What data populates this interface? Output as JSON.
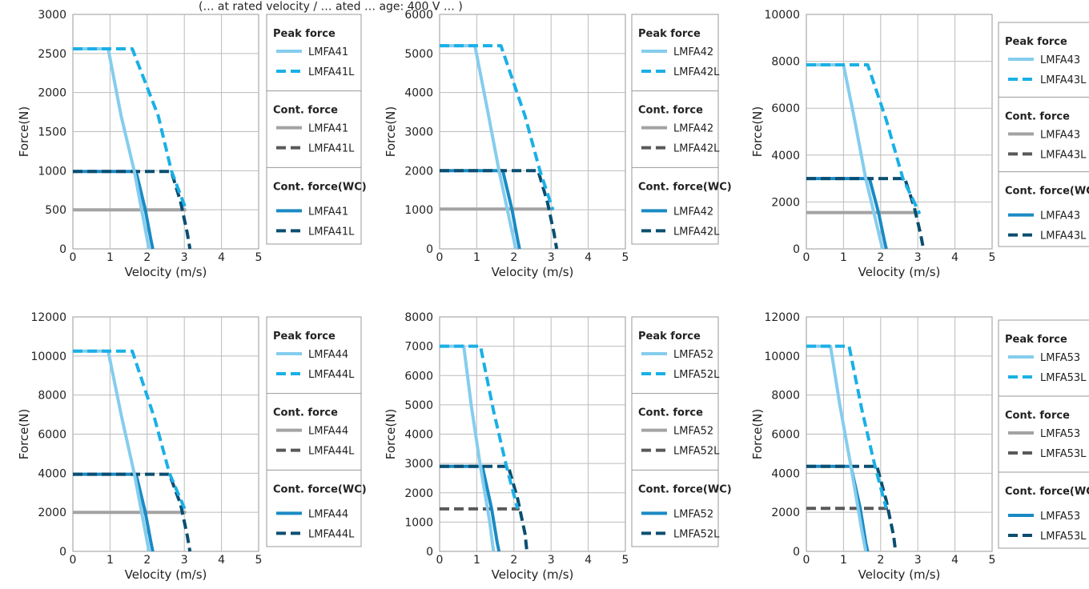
{
  "page_header": "(… at rated velocity / … ated … age: 400 V … )",
  "legend_groups": [
    {
      "key": "peak",
      "title": "Peak force"
    },
    {
      "key": "cont",
      "title": "Cont. force"
    },
    {
      "key": "wc",
      "title": "Cont. force(WC)"
    }
  ],
  "colors": {
    "peak_std": "#85cdee",
    "peak_L": "#1ab0e6",
    "cont_std": "#a3a3a3",
    "cont_L": "#595959",
    "wc_std": "#1a8ac4",
    "wc_L": "#0b4e70"
  },
  "chart_data": [
    {
      "type": "line",
      "xlabel": "Velocity (m/s)",
      "ylabel": "Force(N)",
      "xlim": [
        0,
        5
      ],
      "ylim": [
        0,
        3000
      ],
      "xticks": [
        "0",
        "1",
        "2",
        "3",
        "4",
        "5"
      ],
      "yticks": [
        "0",
        "500",
        "1000",
        "1500",
        "2000",
        "2500",
        "3000"
      ],
      "grid": true,
      "legend": "right",
      "series": [
        {
          "name": "LMFA41",
          "group": "peak",
          "style": "std",
          "points": [
            [
              0,
              2560
            ],
            [
              0.95,
              2560
            ],
            [
              1.3,
              1700
            ],
            [
              1.65,
              1000
            ],
            [
              2.05,
              0
            ]
          ]
        },
        {
          "name": "LMFA41L",
          "group": "peak",
          "style": "L",
          "points": [
            [
              0,
              2560
            ],
            [
              1.6,
              2560
            ],
            [
              2.3,
              1700
            ],
            [
              2.65,
              1000
            ],
            [
              3.05,
              500
            ]
          ]
        },
        {
          "name": "LMFA41",
          "group": "cont",
          "style": "std",
          "points": [
            [
              0,
              500
            ],
            [
              3.05,
              500
            ]
          ]
        },
        {
          "name": "LMFA41L",
          "group": "cont",
          "style": "L",
          "points": []
        },
        {
          "name": "LMFA41",
          "group": "wc",
          "style": "std",
          "points": [
            [
              0,
              990
            ],
            [
              1.7,
              990
            ],
            [
              1.95,
              500
            ],
            [
              2.1,
              120
            ],
            [
              2.15,
              0
            ]
          ]
        },
        {
          "name": "LMFA41L",
          "group": "wc",
          "style": "L",
          "points": [
            [
              0,
              990
            ],
            [
              2.65,
              990
            ],
            [
              2.9,
              600
            ],
            [
              3.08,
              200
            ],
            [
              3.15,
              0
            ]
          ]
        }
      ]
    },
    {
      "type": "line",
      "xlabel": "Velocity (m/s)",
      "ylabel": "Force(N)",
      "xlim": [
        0,
        5
      ],
      "ylim": [
        0,
        6000
      ],
      "xticks": [
        "0",
        "1",
        "2",
        "3",
        "4",
        "5"
      ],
      "yticks": [
        "0",
        "1000",
        "2000",
        "3000",
        "4000",
        "5000",
        "6000"
      ],
      "grid": true,
      "legend": "right",
      "series": [
        {
          "name": "LMFA42",
          "group": "peak",
          "style": "std",
          "points": [
            [
              0,
              5200
            ],
            [
              0.95,
              5200
            ],
            [
              1.3,
              3500
            ],
            [
              1.6,
              2000
            ],
            [
              2.05,
              0
            ]
          ]
        },
        {
          "name": "LMFA42L",
          "group": "peak",
          "style": "L",
          "points": [
            [
              0,
              5200
            ],
            [
              1.65,
              5200
            ],
            [
              2.3,
              3400
            ],
            [
              2.7,
              2000
            ],
            [
              3.05,
              1000
            ]
          ]
        },
        {
          "name": "LMFA42",
          "group": "cont",
          "style": "std",
          "points": [
            [
              0,
              1020
            ],
            [
              3.05,
              1020
            ]
          ]
        },
        {
          "name": "LMFA42L",
          "group": "cont",
          "style": "L",
          "points": []
        },
        {
          "name": "LMFA42",
          "group": "wc",
          "style": "std",
          "points": [
            [
              0,
              2000
            ],
            [
              1.7,
              2000
            ],
            [
              1.95,
              1000
            ],
            [
              2.1,
              240
            ],
            [
              2.15,
              0
            ]
          ]
        },
        {
          "name": "LMFA42L",
          "group": "wc",
          "style": "L",
          "points": [
            [
              0,
              2000
            ],
            [
              2.65,
              2000
            ],
            [
              2.9,
              1200
            ],
            [
              3.08,
              400
            ],
            [
              3.15,
              0
            ]
          ]
        }
      ]
    },
    {
      "type": "line",
      "xlabel": "Velocity (m/s)",
      "ylabel": "Force(N)",
      "xlim": [
        0,
        5
      ],
      "ylim": [
        0,
        10000
      ],
      "xticks": [
        "0",
        "1",
        "2",
        "3",
        "4",
        "5"
      ],
      "yticks": [
        "0",
        "2000",
        "4000",
        "6000",
        "8000",
        "10000"
      ],
      "grid": true,
      "legend": "right",
      "series": [
        {
          "name": "LMFA43",
          "group": "peak",
          "style": "std",
          "points": [
            [
              0,
              7850
            ],
            [
              1.0,
              7850
            ],
            [
              1.3,
              5500
            ],
            [
              1.6,
              3000
            ],
            [
              2.05,
              0
            ]
          ]
        },
        {
          "name": "LMFA43L",
          "group": "peak",
          "style": "L",
          "points": [
            [
              0,
              7850
            ],
            [
              1.65,
              7850
            ],
            [
              2.15,
              5500
            ],
            [
              2.6,
              3000
            ],
            [
              3.05,
              1500
            ]
          ]
        },
        {
          "name": "LMFA43",
          "group": "cont",
          "style": "std",
          "points": [
            [
              0,
              1550
            ],
            [
              3.05,
              1550
            ]
          ]
        },
        {
          "name": "LMFA43L",
          "group": "cont",
          "style": "L",
          "points": []
        },
        {
          "name": "LMFA43",
          "group": "wc",
          "style": "std",
          "points": [
            [
              0,
              3000
            ],
            [
              1.7,
              3000
            ],
            [
              1.95,
              1500
            ],
            [
              2.1,
              360
            ],
            [
              2.15,
              0
            ]
          ]
        },
        {
          "name": "LMFA43L",
          "group": "wc",
          "style": "L",
          "points": [
            [
              0,
              3000
            ],
            [
              2.65,
              3000
            ],
            [
              2.9,
              1800
            ],
            [
              3.08,
              600
            ],
            [
              3.15,
              0
            ]
          ]
        }
      ]
    },
    {
      "type": "line",
      "xlabel": "Velocity (m/s)",
      "ylabel": "Force(N)",
      "xlim": [
        0,
        5
      ],
      "ylim": [
        0,
        12000
      ],
      "xticks": [
        "0",
        "1",
        "2",
        "3",
        "4",
        "5"
      ],
      "yticks": [
        "0",
        "2000",
        "4000",
        "6000",
        "8000",
        "10000",
        "12000"
      ],
      "grid": true,
      "legend": "right",
      "series": [
        {
          "name": "LMFA44",
          "group": "peak",
          "style": "std",
          "points": [
            [
              0,
              10250
            ],
            [
              0.95,
              10250
            ],
            [
              1.3,
              7000
            ],
            [
              1.65,
              4000
            ],
            [
              2.05,
              0
            ]
          ]
        },
        {
          "name": "LMFA44L",
          "group": "peak",
          "style": "L",
          "points": [
            [
              0,
              10250
            ],
            [
              1.6,
              10250
            ],
            [
              2.2,
              6800
            ],
            [
              2.6,
              4000
            ],
            [
              3.05,
              2000
            ]
          ]
        },
        {
          "name": "LMFA44",
          "group": "cont",
          "style": "std",
          "points": [
            [
              0,
              2000
            ],
            [
              3.05,
              2000
            ]
          ]
        },
        {
          "name": "LMFA44L",
          "group": "cont",
          "style": "L",
          "points": []
        },
        {
          "name": "LMFA44",
          "group": "wc",
          "style": "std",
          "points": [
            [
              0,
              3950
            ],
            [
              1.7,
              3950
            ],
            [
              1.95,
              2000
            ],
            [
              2.1,
              480
            ],
            [
              2.15,
              0
            ]
          ]
        },
        {
          "name": "LMFA44L",
          "group": "wc",
          "style": "L",
          "points": [
            [
              0,
              3950
            ],
            [
              2.6,
              3950
            ],
            [
              2.9,
              2400
            ],
            [
              3.08,
              800
            ],
            [
              3.15,
              0
            ]
          ]
        }
      ]
    },
    {
      "type": "line",
      "xlabel": "Velocity (m/s)",
      "ylabel": "Force(N)",
      "xlim": [
        0,
        5
      ],
      "ylim": [
        0,
        8000
      ],
      "xticks": [
        "0",
        "1",
        "2",
        "3",
        "4",
        "5"
      ],
      "yticks": [
        "0",
        "1000",
        "2000",
        "3000",
        "4000",
        "5000",
        "6000",
        "7000",
        "8000"
      ],
      "grid": true,
      "legend": "right",
      "series": [
        {
          "name": "LMFA52",
          "group": "peak",
          "style": "std",
          "points": [
            [
              0,
              7000
            ],
            [
              0.65,
              7000
            ],
            [
              0.85,
              5000
            ],
            [
              1.1,
              2900
            ],
            [
              1.35,
              1000
            ],
            [
              1.45,
              0
            ]
          ]
        },
        {
          "name": "LMFA52L",
          "group": "peak",
          "style": "L",
          "points": [
            [
              0,
              7000
            ],
            [
              1.1,
              7000
            ],
            [
              1.45,
              4800
            ],
            [
              1.8,
              2900
            ],
            [
              2.1,
              1450
            ]
          ]
        },
        {
          "name": "LMFA52",
          "group": "cont",
          "style": "std",
          "points": []
        },
        {
          "name": "LMFA52L",
          "group": "cont",
          "style": "L",
          "points": [
            [
              0,
              1450
            ],
            [
              2.15,
              1450
            ]
          ]
        },
        {
          "name": "LMFA52",
          "group": "wc",
          "style": "std",
          "points": [
            [
              0,
              2900
            ],
            [
              1.15,
              2900
            ],
            [
              1.4,
              1450
            ],
            [
              1.55,
              300
            ],
            [
              1.6,
              0
            ]
          ]
        },
        {
          "name": "LMFA52L",
          "group": "wc",
          "style": "L",
          "points": [
            [
              0,
              2900
            ],
            [
              1.85,
              2900
            ],
            [
              2.1,
              1800
            ],
            [
              2.3,
              600
            ],
            [
              2.35,
              0
            ]
          ]
        }
      ]
    },
    {
      "type": "line",
      "xlabel": "Velocity (m/s)",
      "ylabel": "Force(N)",
      "xlim": [
        0,
        5
      ],
      "ylim": [
        0,
        12000
      ],
      "xticks": [
        "0",
        "1",
        "2",
        "3",
        "4",
        "5"
      ],
      "yticks": [
        "0",
        "2000",
        "4000",
        "6000",
        "8000",
        "10000",
        "12000"
      ],
      "grid": true,
      "legend": "right",
      "series": [
        {
          "name": "LMFA53",
          "group": "peak",
          "style": "std",
          "points": [
            [
              0,
              10500
            ],
            [
              0.65,
              10500
            ],
            [
              0.9,
              7500
            ],
            [
              1.2,
              4350
            ],
            [
              1.5,
              1000
            ],
            [
              1.6,
              0
            ]
          ]
        },
        {
          "name": "LMFA53L",
          "group": "peak",
          "style": "L",
          "points": [
            [
              0,
              10500
            ],
            [
              1.15,
              10500
            ],
            [
              1.5,
              7200
            ],
            [
              1.85,
              4350
            ],
            [
              2.15,
              2200
            ]
          ]
        },
        {
          "name": "LMFA53",
          "group": "cont",
          "style": "std",
          "points": []
        },
        {
          "name": "LMFA53L",
          "group": "cont",
          "style": "L",
          "points": [
            [
              0,
              2200
            ],
            [
              2.2,
              2200
            ]
          ]
        },
        {
          "name": "LMFA53",
          "group": "wc",
          "style": "std",
          "points": [
            [
              0,
              4350
            ],
            [
              1.2,
              4350
            ],
            [
              1.45,
              2200
            ],
            [
              1.6,
              450
            ],
            [
              1.65,
              0
            ]
          ]
        },
        {
          "name": "LMFA53L",
          "group": "wc",
          "style": "L",
          "points": [
            [
              0,
              4350
            ],
            [
              1.9,
              4350
            ],
            [
              2.15,
              2600
            ],
            [
              2.35,
              800
            ],
            [
              2.4,
              0
            ]
          ]
        }
      ]
    }
  ]
}
